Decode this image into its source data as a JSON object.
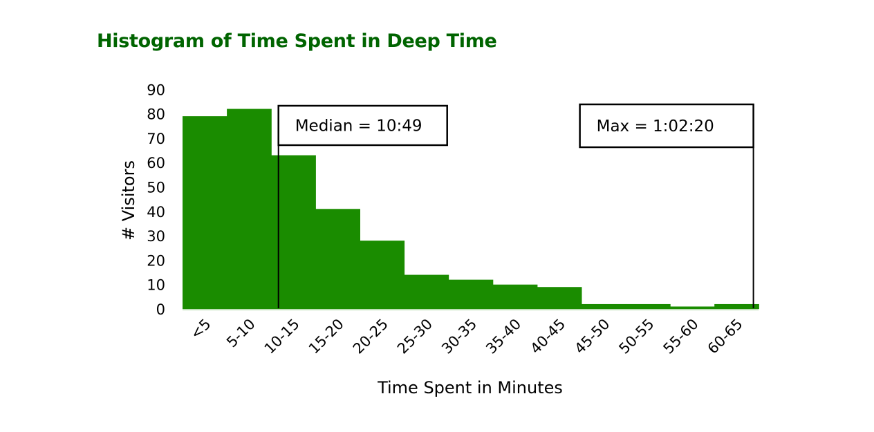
{
  "chart_data": {
    "type": "bar",
    "title": "Histogram of Time Spent in Deep Time",
    "xlabel": "Time Spent in Minutes",
    "ylabel": "# Visitors",
    "categories": [
      "<5",
      "5-10",
      "10-15",
      "15-20",
      "20-25",
      "25-30",
      "30-35",
      "35-40",
      "40-45",
      "45-50",
      "50-55",
      "55-60",
      "60-65"
    ],
    "values": [
      79,
      82,
      63,
      41,
      28,
      14,
      12,
      10,
      9,
      2,
      2,
      1,
      2
    ],
    "ylim": [
      0,
      90
    ],
    "yticks": [
      0,
      10,
      20,
      30,
      40,
      50,
      60,
      70,
      80,
      90
    ],
    "grid": false,
    "bar_color": "#1a8c00",
    "annotations": [
      {
        "text": "Median = 10:49",
        "x_minutes": 10.82
      },
      {
        "text": "Max = 1:02:20",
        "x_minutes": 64.4
      }
    ]
  }
}
